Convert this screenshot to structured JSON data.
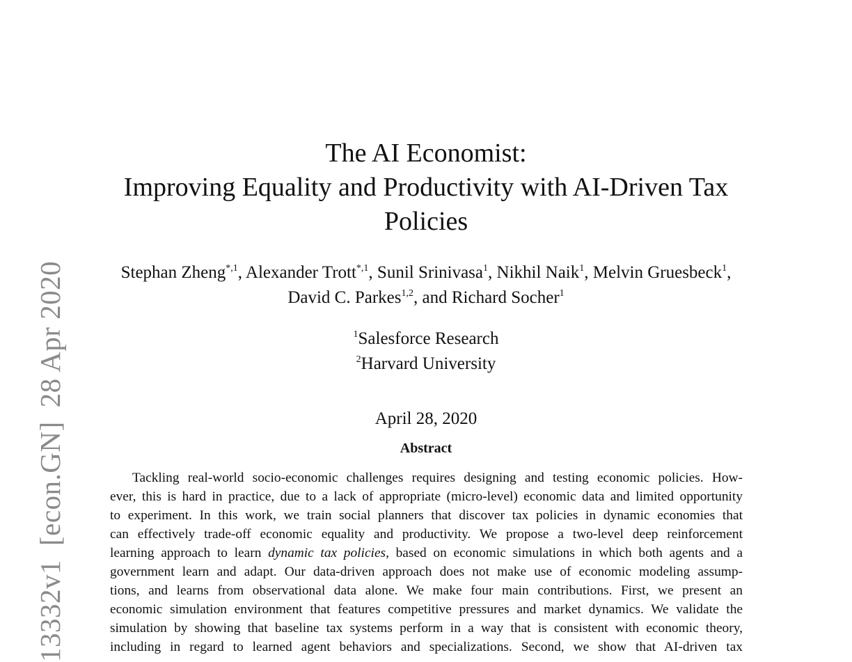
{
  "arxiv_stamp": {
    "id": "13332v1",
    "category": "[econ.GN]",
    "date": "28 Apr 2020"
  },
  "title": {
    "line1": "The AI Economist:",
    "line2": "Improving Equality and Productivity with AI-Driven Tax",
    "line3": "Policies"
  },
  "authors": [
    {
      "name": "Stephan Zheng",
      "sup": "*,1",
      "sep": ", "
    },
    {
      "name": "Alexander Trott",
      "sup": "*,1",
      "sep": ", "
    },
    {
      "name": "Sunil Srinivasa",
      "sup": "1",
      "sep": ", "
    },
    {
      "name": "Nikhil Naik",
      "sup": "1",
      "sep": ", "
    },
    {
      "name": "Melvin Gruesbeck",
      "sup": "1",
      "sep": ","
    },
    {
      "name": "David C. Parkes",
      "sup": "1,2",
      "sep": ", and "
    },
    {
      "name": "Richard Socher",
      "sup": "1",
      "sep": ""
    }
  ],
  "affiliations": [
    {
      "sup": "1",
      "name": "Salesforce Research"
    },
    {
      "sup": "2",
      "name": "Harvard University"
    }
  ],
  "date": "April 28, 2020",
  "abstract": {
    "heading": "Abstract",
    "lines": [
      "Tackling real-world socio-economic challenges requires designing and testing economic policies. How-",
      "ever, this is hard in practice, due to a lack of appropriate (micro-level) economic data and limited opportunity",
      "to experiment. In this work, we train social planners that discover tax policies in dynamic economies that",
      "can effectively trade-off economic equality and productivity. We propose a two-level deep reinforcement",
      {
        "before": "learning approach to learn ",
        "italic": "dynamic tax policies",
        "after": ", based on economic simulations in which both agents and a"
      },
      "government learn and adapt. Our data-driven approach does not make use of economic modeling assump-",
      "tions, and learns from observational data alone. We make four main contributions. First, we present an",
      "economic simulation environment that features competitive pressures and market dynamics. We validate the",
      "simulation by showing that baseline tax systems perform in a way that is consistent with economic theory,",
      "including in regard to learned agent behaviors and specializations. Second, we show that AI-driven tax"
    ]
  }
}
